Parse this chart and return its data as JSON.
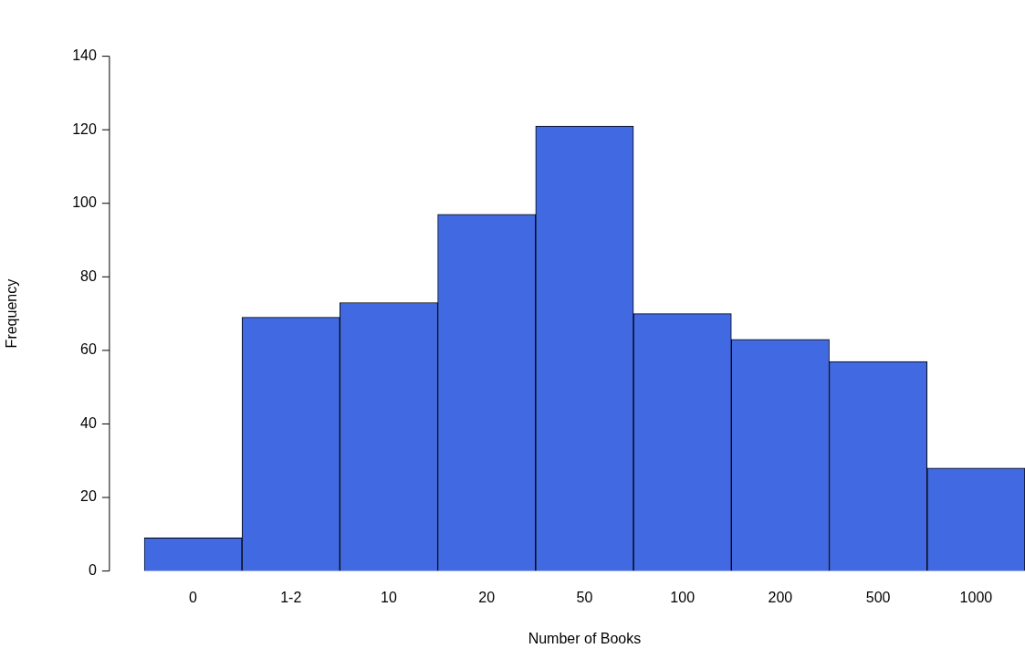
{
  "chart_data": {
    "type": "bar",
    "xlabel": "Number of Books",
    "ylabel": "Frequency",
    "categories": [
      "0",
      "1-2",
      "10",
      "20",
      "50",
      "100",
      "200",
      "500",
      "1000"
    ],
    "values": [
      9,
      69,
      73,
      97,
      121,
      70,
      63,
      57,
      28
    ],
    "color": "#4169e1",
    "ylim": [
      0,
      140
    ],
    "yticks": [
      0,
      20,
      40,
      60,
      80,
      100,
      120,
      140
    ],
    "grid": false,
    "legend": false
  }
}
